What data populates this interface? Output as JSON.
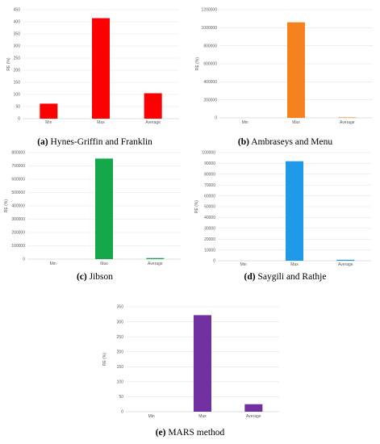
{
  "chart_data": [
    {
      "id": "a",
      "type": "bar",
      "categories": [
        "Min",
        "Max",
        "Average"
      ],
      "values": [
        62,
        415,
        105
      ],
      "ylabel": "RE (%)",
      "ylim": [
        0,
        450
      ],
      "yticks": [
        0,
        50,
        100,
        150,
        200,
        250,
        300,
        350,
        400,
        450
      ],
      "color": "#ff0000",
      "caption_letter": "(a)",
      "caption_text": "Hynes-Griffin and Franklin"
    },
    {
      "id": "b",
      "type": "bar",
      "categories": [
        "Min",
        "Max",
        "Average"
      ],
      "values": [
        0,
        1060000,
        5000
      ],
      "ylabel": "RE (%)",
      "ylim": [
        0,
        1200000
      ],
      "yticks": [
        0,
        200000,
        400000,
        600000,
        800000,
        1000000,
        1200000
      ],
      "color": "#f5821f",
      "caption_letter": "(b)",
      "caption_text": "Ambraseys and Menu"
    },
    {
      "id": "c",
      "type": "bar",
      "categories": [
        "Min",
        "Max",
        "Average"
      ],
      "values": [
        0,
        755000,
        8000
      ],
      "ylabel": "RE (%)",
      "ylim": [
        0,
        800000
      ],
      "yticks": [
        0,
        100000,
        200000,
        300000,
        400000,
        500000,
        600000,
        700000,
        800000
      ],
      "color": "#14a84a",
      "caption_letter": "(c)",
      "caption_text": "Jibson"
    },
    {
      "id": "d",
      "type": "bar",
      "categories": [
        "Min",
        "Max",
        "Average"
      ],
      "values": [
        0,
        92000,
        900
      ],
      "ylabel": "RE (%)",
      "ylim": [
        0,
        100000
      ],
      "yticks": [
        0,
        10000,
        20000,
        30000,
        40000,
        50000,
        60000,
        70000,
        80000,
        90000,
        100000
      ],
      "color": "#1e9ae8",
      "caption_letter": "(d)",
      "caption_text": "Saygili and Rathje"
    },
    {
      "id": "e",
      "type": "bar",
      "categories": [
        "Min",
        "Max",
        "Average"
      ],
      "values": [
        0,
        322,
        25
      ],
      "ylabel": "RE (%)",
      "ylim": [
        0,
        350
      ],
      "yticks": [
        0,
        50,
        100,
        150,
        200,
        250,
        300,
        350
      ],
      "color": "#7030a0",
      "caption_letter": "(e)",
      "caption_text": "MARS method"
    }
  ]
}
